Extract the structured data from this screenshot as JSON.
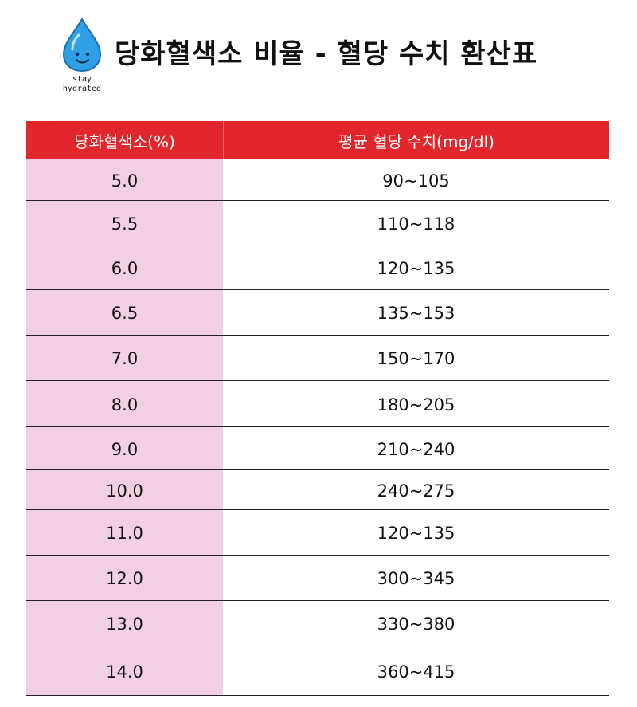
{
  "header": {
    "logo": {
      "icon": "water-drop-icon",
      "line1": "stay",
      "line2": "hydrated",
      "color": "#2f9fe6"
    },
    "title": "당화혈색소 비율 - 혈당 수치 환산표"
  },
  "table": {
    "header_color": "#e1272c",
    "first_column_color": "#f2cfe2",
    "columns": [
      "당화혈색소(%)",
      "평균 혈당 수치(mg/dl)"
    ],
    "rows": [
      {
        "a1c": "5.0",
        "glucose": "90~105"
      },
      {
        "a1c": "5.5",
        "glucose": "110~118"
      },
      {
        "a1c": "6.0",
        "glucose": "120~135"
      },
      {
        "a1c": "6.5",
        "glucose": "135~153"
      },
      {
        "a1c": "7.0",
        "glucose": "150~170"
      },
      {
        "a1c": "8.0",
        "glucose": "180~205"
      },
      {
        "a1c": "9.0",
        "glucose": "210~240"
      },
      {
        "a1c": "10.0",
        "glucose": "240~275"
      },
      {
        "a1c": "11.0",
        "glucose": "120~135"
      },
      {
        "a1c": "12.0",
        "glucose": "300~345"
      },
      {
        "a1c": "13.0",
        "glucose": "330~380"
      },
      {
        "a1c": "14.0",
        "glucose": "360~415"
      }
    ]
  }
}
